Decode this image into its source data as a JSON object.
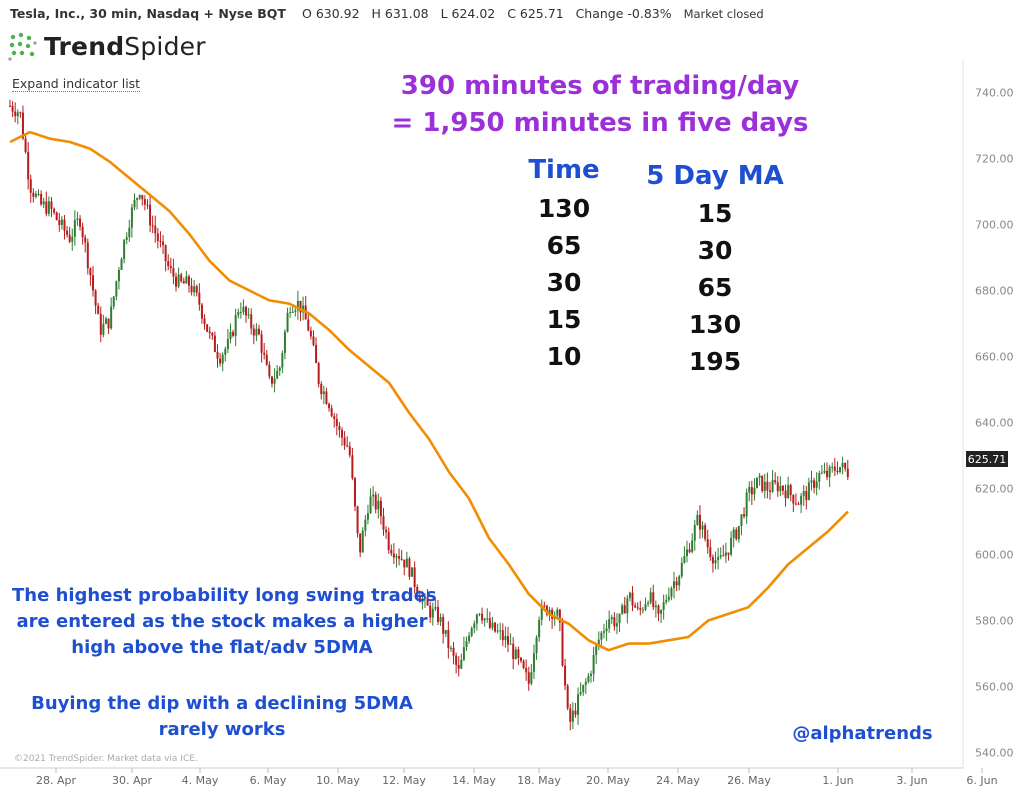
{
  "header": {
    "symbol": "Tesla, Inc., 30 min, Nasdaq + Nyse BQT",
    "open_label": "O",
    "open": "630.92",
    "high_label": "H",
    "high": "631.08",
    "low_label": "L",
    "low": "624.02",
    "close_label": "C",
    "close": "625.71",
    "change_label": "Change",
    "change": "-0.83%",
    "status": "Market closed"
  },
  "logo": {
    "text_bold": "Trend",
    "text_regular": "Spider"
  },
  "expand_link": "Expand indicator list",
  "annotations": {
    "title_line1": "390 minutes of trading/day",
    "title_line2": "= 1,950 minutes in five days",
    "time_header": "Time",
    "ma_header": "5 Day MA",
    "time_values": [
      "130",
      "65",
      "30",
      "15",
      "10"
    ],
    "ma_values": [
      "15",
      "30",
      "65",
      "130",
      "195"
    ],
    "note1_line1": "The highest probability long swing trades",
    "note1_line2": "are entered as the stock makes a higher",
    "note1_line3": "high above the flat/adv 5DMA",
    "note2_line1": "Buying the dip with a declining 5DMA",
    "note2_line2": "rarely works",
    "handle": "@alphatrends"
  },
  "credit": "©2021 TrendSpider. Market data via ICE.",
  "colors": {
    "up": "#2e7d32",
    "down": "#b71c1c",
    "ma": "#f28c00",
    "purple": "#9b30d9",
    "blue": "#1f4fd1"
  },
  "chart_data": {
    "type": "line",
    "ylim": [
      535,
      745
    ],
    "y_ticks": [
      540,
      560,
      580,
      600,
      620,
      640,
      660,
      680,
      700,
      720,
      740
    ],
    "x_tick_labels": [
      "28. Apr",
      "30. Apr",
      "4. May",
      "6. May",
      "10. May",
      "12. May",
      "14. May",
      "18. May",
      "20. May",
      "24. May",
      "26. May",
      "1. Jun",
      "3. Jun",
      "6. Jun"
    ],
    "last_price": "625.71",
    "grid": false,
    "legend": "none",
    "price_series": {
      "x": [
        0,
        10,
        20,
        30,
        40,
        50,
        60,
        70,
        80,
        90,
        100,
        110,
        120,
        130,
        140,
        150,
        160,
        170,
        180,
        190,
        200,
        210,
        220,
        230,
        240,
        250,
        260,
        270,
        280,
        290,
        300,
        310,
        320,
        330,
        340,
        350,
        360,
        370,
        380,
        390,
        400,
        410,
        420,
        430,
        440,
        450,
        460,
        470,
        480,
        490,
        500,
        510,
        520,
        530,
        540,
        550,
        560,
        570,
        580,
        590,
        600,
        610,
        620,
        630,
        640,
        650,
        660,
        670,
        680,
        690,
        700,
        710,
        720,
        730,
        740,
        750,
        760,
        770,
        780,
        790,
        800,
        810,
        820,
        830,
        840
      ],
      "y": [
        736,
        734,
        712,
        706,
        705,
        700,
        696,
        702,
        686,
        668,
        671,
        689,
        702,
        711,
        702,
        694,
        686,
        682,
        682,
        676,
        666,
        660,
        664,
        676,
        670,
        666,
        652,
        656,
        676,
        676,
        668,
        652,
        646,
        637,
        632,
        600,
        617,
        614,
        603,
        600,
        596,
        588,
        583,
        581,
        572,
        564,
        577,
        584,
        578,
        576,
        573,
        567,
        561,
        582,
        584,
        581,
        548,
        556,
        563,
        574,
        581,
        579,
        588,
        582,
        588,
        580,
        589,
        594,
        602,
        611,
        602,
        597,
        602,
        608,
        618,
        622,
        620,
        621,
        619,
        616,
        619,
        624,
        624,
        627,
        625
      ]
    },
    "ma_series": {
      "x": [
        0,
        20,
        40,
        60,
        80,
        100,
        120,
        140,
        160,
        180,
        200,
        220,
        240,
        260,
        280,
        300,
        320,
        340,
        360,
        380,
        400,
        420,
        440,
        460,
        480,
        500,
        520,
        540,
        560,
        580,
        600,
        620,
        640,
        660,
        680,
        700,
        720,
        740,
        760,
        780,
        800,
        820,
        840
      ],
      "y": [
        725,
        728,
        726,
        725,
        723,
        719,
        714,
        709,
        704,
        697,
        689,
        683,
        680,
        677,
        676,
        673,
        668,
        662,
        657,
        652,
        643,
        635,
        625,
        617,
        605,
        597,
        588,
        582,
        579,
        574,
        571,
        573,
        573,
        574,
        575,
        580,
        582,
        584,
        590,
        597,
        602,
        607,
        613
      ]
    }
  }
}
